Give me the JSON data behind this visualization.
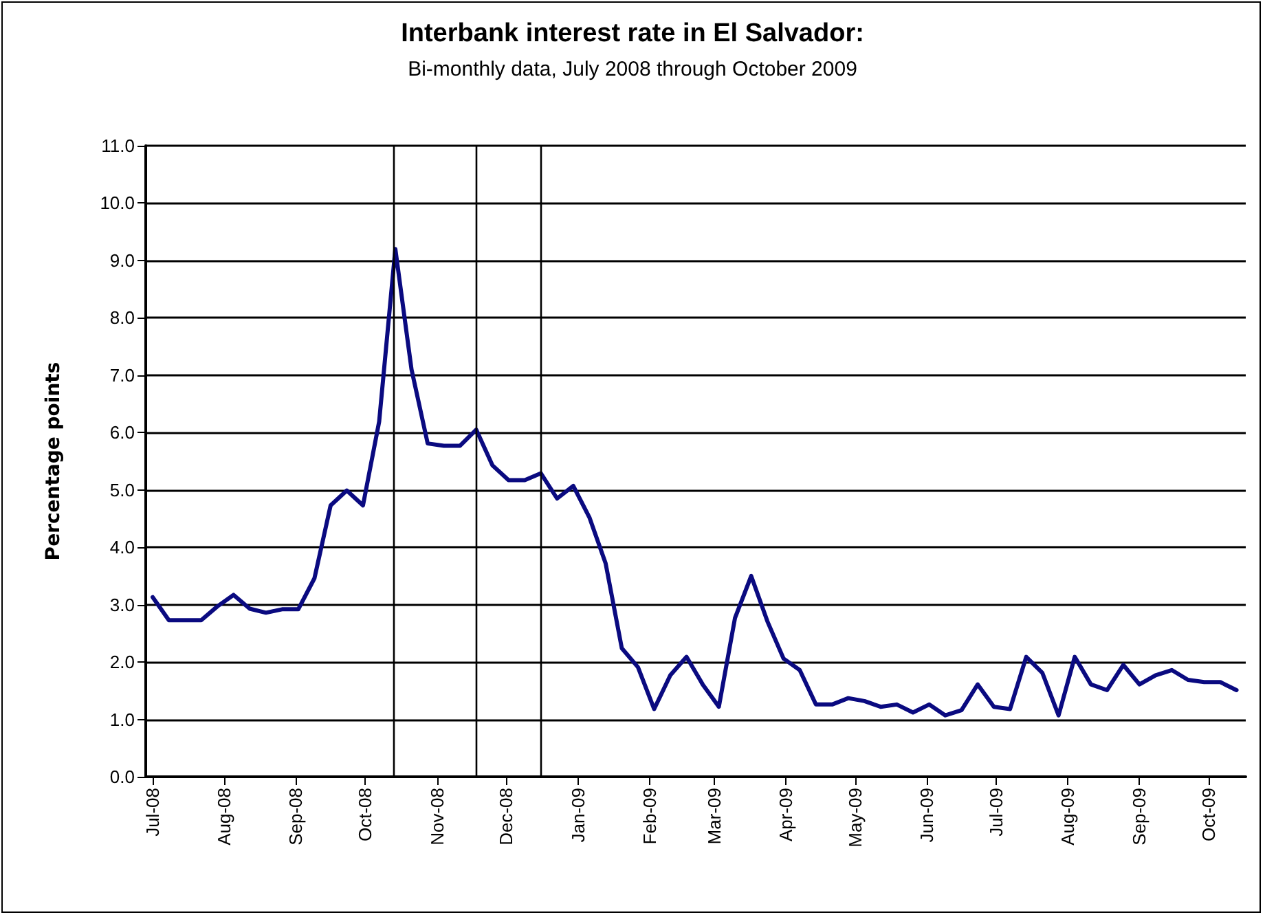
{
  "chart_data": {
    "type": "line",
    "title": "Interbank interest rate in El Salvador:",
    "subtitle": "Bi-monthly data, July 2008 through October 2009",
    "ylabel": "Percentage points",
    "x": [
      "2008-07-01",
      "2008-07-08",
      "2008-07-15",
      "2008-07-22",
      "2008-07-29",
      "2008-08-05",
      "2008-08-12",
      "2008-08-19",
      "2008-08-26",
      "2008-09-02",
      "2008-09-09",
      "2008-09-16",
      "2008-09-23",
      "2008-09-30",
      "2008-10-07",
      "2008-10-14",
      "2008-10-21",
      "2008-10-28",
      "2008-11-04",
      "2008-11-11",
      "2008-11-18",
      "2008-11-25",
      "2008-12-02",
      "2008-12-09",
      "2008-12-16",
      "2008-12-23",
      "2008-12-30",
      "2009-01-06",
      "2009-01-13",
      "2009-01-20",
      "2009-01-27",
      "2009-02-03",
      "2009-02-10",
      "2009-02-17",
      "2009-02-24",
      "2009-03-03",
      "2009-03-10",
      "2009-03-17",
      "2009-03-24",
      "2009-03-31",
      "2009-04-07",
      "2009-04-14",
      "2009-04-21",
      "2009-04-28",
      "2009-05-05",
      "2009-05-12",
      "2009-05-19",
      "2009-05-26",
      "2009-06-02",
      "2009-06-09",
      "2009-06-16",
      "2009-06-23",
      "2009-06-30",
      "2009-07-07",
      "2009-07-14",
      "2009-07-21",
      "2009-07-28",
      "2009-08-04",
      "2009-08-11",
      "2009-08-18",
      "2009-08-25",
      "2009-09-01",
      "2009-09-08",
      "2009-09-15",
      "2009-09-22",
      "2009-09-29",
      "2009-10-06",
      "2009-10-13"
    ],
    "series": [
      {
        "color": "#0a0a80",
        "values": [
          3.13,
          2.73,
          2.73,
          2.73,
          2.97,
          3.17,
          2.93,
          2.86,
          2.92,
          2.92,
          3.46,
          4.73,
          4.99,
          4.73,
          6.19,
          9.2,
          7.1,
          5.81,
          5.77,
          5.77,
          6.05,
          5.43,
          5.17,
          5.17,
          5.29,
          4.85,
          5.07,
          4.52,
          3.72,
          2.24,
          1.91,
          1.18,
          1.77,
          2.09,
          1.61,
          1.22,
          2.77,
          3.5,
          2.71,
          2.06,
          1.86,
          1.26,
          1.26,
          1.37,
          1.32,
          1.22,
          1.26,
          1.12,
          1.26,
          1.07,
          1.16,
          1.61,
          1.22,
          1.18,
          2.09,
          1.81,
          1.07,
          2.09,
          1.61,
          1.51,
          1.95,
          1.61,
          1.77,
          1.86,
          1.69,
          1.65,
          1.65,
          1.51
        ]
      }
    ],
    "xlim": [
      "2008-06-28",
      "2009-10-17"
    ],
    "xticks": [
      {
        "value": "2008-07-01",
        "label": "Jul-08"
      },
      {
        "value": "2008-08-01",
        "label": "Aug-08"
      },
      {
        "value": "2008-09-01",
        "label": "Sep-08"
      },
      {
        "value": "2008-10-01",
        "label": "Oct-08"
      },
      {
        "value": "2008-11-01",
        "label": "Nov-08"
      },
      {
        "value": "2008-12-01",
        "label": "Dec-08"
      },
      {
        "value": "2009-01-01",
        "label": "Jan-09"
      },
      {
        "value": "2009-02-01",
        "label": "Feb-09"
      },
      {
        "value": "2009-03-01",
        "label": "Mar-09"
      },
      {
        "value": "2009-04-01",
        "label": "Apr-09"
      },
      {
        "value": "2009-05-01",
        "label": "May-09"
      },
      {
        "value": "2009-06-01",
        "label": "Jun-09"
      },
      {
        "value": "2009-07-01",
        "label": "Jul-09"
      },
      {
        "value": "2009-08-01",
        "label": "Aug-09"
      },
      {
        "value": "2009-09-01",
        "label": "Sep-09"
      },
      {
        "value": "2009-10-01",
        "label": "Oct-09"
      }
    ],
    "ylim": [
      0,
      11
    ],
    "yticks": [
      {
        "value": 0,
        "label": "0.0"
      },
      {
        "value": 1,
        "label": "1.0"
      },
      {
        "value": 2,
        "label": "2.0"
      },
      {
        "value": 3,
        "label": "3.0"
      },
      {
        "value": 4,
        "label": "4.0"
      },
      {
        "value": 5,
        "label": "5.0"
      },
      {
        "value": 6,
        "label": "6.0"
      },
      {
        "value": 7,
        "label": "7.0"
      },
      {
        "value": 8,
        "label": "8.0"
      },
      {
        "value": 9,
        "label": "9.0"
      },
      {
        "value": 10,
        "label": "10.0"
      },
      {
        "value": 11,
        "label": "11.0"
      }
    ],
    "ref_lines": [
      {
        "axis": "x",
        "value": "2008-10-13",
        "color": "#000000"
      },
      {
        "axis": "x",
        "value": "2008-11-18",
        "color": "#000000"
      },
      {
        "axis": "x",
        "value": "2008-12-16",
        "color": "#000000"
      }
    ],
    "grid": "y",
    "marker": "none",
    "line_style": "solid"
  }
}
